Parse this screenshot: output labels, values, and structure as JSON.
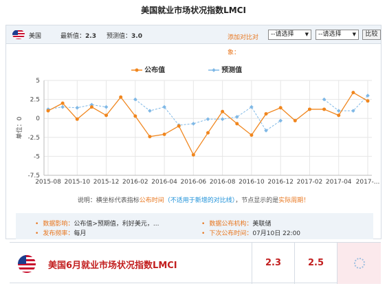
{
  "page_title": "美国就业市场状况指数LMCI",
  "toolbar": {
    "country": "美国",
    "latest_label": "最新值：",
    "latest_value": "2.3",
    "forecast_label": "预测值：",
    "forecast_value": "3.0",
    "compare_label": "添加对比对象：",
    "select1": "--请选择",
    "select2": "--请选择",
    "compare_button": "比较"
  },
  "legend": {
    "actual": "公布值",
    "forecast": "预测值"
  },
  "colors": {
    "actual": "#f0861e",
    "forecast": "#7fb8e6",
    "accent": "#e8761e",
    "headline_red": "#c21e1e",
    "grid": "#e6e6e6"
  },
  "note": {
    "prefix": "说明：横坐标代表指标",
    "highlight": "公布时间",
    "blue_text": "（不适用于新增的对比线）",
    "suffix": "，节点显示的是",
    "tail": "实际周期！"
  },
  "info": {
    "impact_label": "数据影响：",
    "impact_value": "公布值>预期值，利好美元，...",
    "freq_label": "发布频率：",
    "freq_value": "每月",
    "org_label": "数据公布机构：",
    "org_value": "美联储",
    "next_label": "下次公布时间：",
    "next_value": "07月10日 22:00"
  },
  "row": {
    "name": "美国6月就业市场状况指数LMCI",
    "value1": "2.3",
    "value2": "2.5"
  },
  "chart_data": {
    "type": "line",
    "ylabel": "单位：0",
    "ylim": [
      -7.5,
      5
    ],
    "yticks": [
      5,
      2.5,
      0,
      -2.5,
      -5,
      -7.5
    ],
    "xtick_labels": [
      "2015-08",
      "2015-10",
      "2015-12",
      "2016-02",
      "2016-04",
      "2016-06",
      "2016-08",
      "2016-10",
      "2016-12",
      "2017-02",
      "2017-04",
      "2017-..."
    ],
    "grid": true,
    "legend_position": "top",
    "series": [
      {
        "name": "公布值",
        "values": [
          1.0,
          2.0,
          -0.1,
          1.5,
          0.4,
          2.8,
          0.3,
          -2.4,
          -2.1,
          -1.0,
          -4.8,
          -1.9,
          0.9,
          -0.7,
          -2.2,
          0.6,
          1.4,
          -0.3,
          1.2,
          1.2,
          0.4,
          3.4,
          2.3
        ]
      },
      {
        "name": "预测值",
        "values": [
          1.2,
          1.5,
          1.4,
          1.8,
          1.5,
          null,
          2.5,
          1.0,
          1.5,
          -0.9,
          -0.7,
          -0.1,
          -0.1,
          0.2,
          1.5,
          -1.6,
          -0.3,
          null,
          null,
          2.5,
          1.0,
          1.0,
          3.0
        ]
      }
    ]
  }
}
